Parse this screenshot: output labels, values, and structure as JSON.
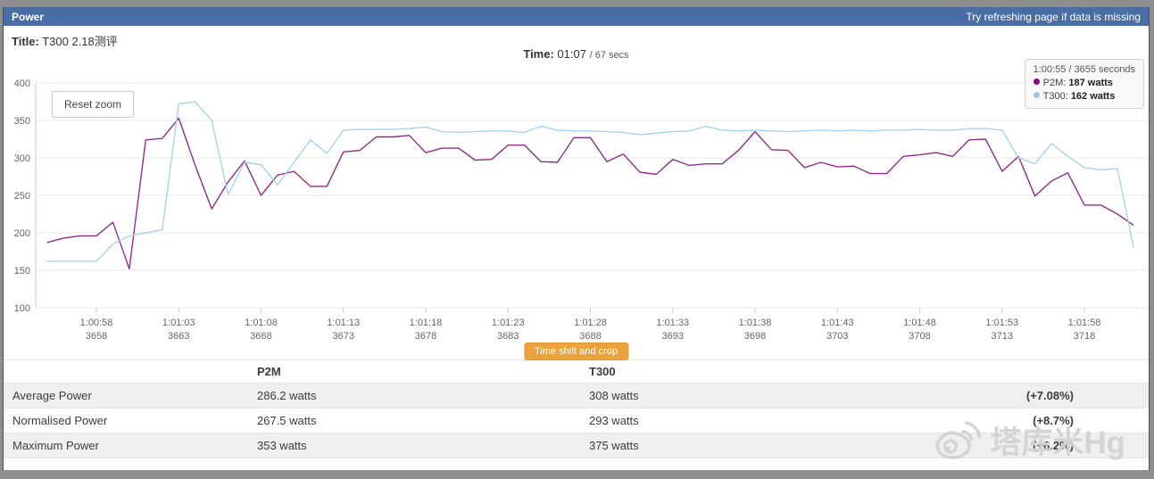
{
  "titlebar": {
    "title": "Power",
    "hint": "Try refreshing page if data is missing"
  },
  "meta": {
    "title_label": "Title:",
    "title_value": "T300 2.18测评",
    "time_label": "Time:",
    "time_value": "01:07",
    "time_suffix": "/ 67 secs"
  },
  "buttons": {
    "reset_zoom": "Reset zoom",
    "time_shift": "Time shift and crop"
  },
  "tooltip": {
    "header": "1:00:55 / 3655 seconds",
    "items": [
      {
        "name": "P2M",
        "value": "187 watts",
        "color": "#800c80"
      },
      {
        "name": "T300",
        "value": "162 watts",
        "color": "#9cc6e8"
      }
    ]
  },
  "chart_data": {
    "type": "line",
    "x_start_seconds": 3655,
    "x_step_seconds": 1,
    "ylim": [
      100,
      400
    ],
    "yticks": [
      100,
      150,
      200,
      250,
      300,
      350,
      400
    ],
    "grid": true,
    "legend_position": "top-right-tooltip",
    "xticks": [
      {
        "time": "1:00:58",
        "sec": "3658"
      },
      {
        "time": "1:01:03",
        "sec": "3663"
      },
      {
        "time": "1:01:08",
        "sec": "3668"
      },
      {
        "time": "1:01:13",
        "sec": "3673"
      },
      {
        "time": "1:01:18",
        "sec": "3678"
      },
      {
        "time": "1:01:23",
        "sec": "3683"
      },
      {
        "time": "1:01:28",
        "sec": "3688"
      },
      {
        "time": "1:01:33",
        "sec": "3693"
      },
      {
        "time": "1:01:38",
        "sec": "3698"
      },
      {
        "time": "1:01:43",
        "sec": "3703"
      },
      {
        "time": "1:01:48",
        "sec": "3708"
      },
      {
        "time": "1:01:53",
        "sec": "3713"
      },
      {
        "time": "1:01:58",
        "sec": "3718"
      }
    ],
    "series": [
      {
        "name": "P2M",
        "color": "#8f2d8a",
        "values": [
          187,
          193,
          196,
          196,
          214,
          152,
          324,
          326,
          353,
          290,
          232,
          268,
          296,
          250,
          277,
          282,
          262,
          262,
          308,
          310,
          328,
          328,
          330,
          307,
          313,
          313,
          297,
          298,
          317,
          317,
          295,
          294,
          327,
          327,
          295,
          305,
          281,
          278,
          298,
          290,
          292,
          292,
          310,
          335,
          311,
          310,
          287,
          294,
          288,
          289,
          279,
          279,
          302,
          304,
          307,
          302,
          324,
          325,
          282,
          302,
          249,
          269,
          280,
          237,
          237,
          225,
          210
        ]
      },
      {
        "name": "T300",
        "color": "#a9d2ec",
        "values": [
          162,
          162,
          162,
          162,
          185,
          196,
          200,
          204,
          372,
          375,
          350,
          251,
          294,
          291,
          264,
          294,
          324,
          306,
          337,
          338,
          338,
          338,
          339,
          341,
          335,
          334,
          335,
          336,
          336,
          334,
          342,
          337,
          336,
          336,
          335,
          334,
          331,
          333,
          335,
          336,
          342,
          337,
          336,
          337,
          336,
          335,
          336,
          337,
          336,
          337,
          336,
          337,
          337,
          338,
          337,
          337,
          339,
          339,
          337,
          300,
          292,
          319,
          302,
          287,
          284,
          286,
          180
        ]
      }
    ]
  },
  "table": {
    "columns": [
      "",
      "P2M",
      "T300",
      ""
    ],
    "rows": [
      {
        "label": "Average Power",
        "p2m": "286.2 watts",
        "t300": "308 watts",
        "delta": "(+7.08%)"
      },
      {
        "label": "Normalised Power",
        "p2m": "267.5 watts",
        "t300": "293 watts",
        "delta": "(+8.7%)"
      },
      {
        "label": "Maximum Power",
        "p2m": "353 watts",
        "t300": "375 watts",
        "delta": "(+6.2%)"
      }
    ]
  },
  "watermark": {
    "text": "塔库米Hg"
  }
}
